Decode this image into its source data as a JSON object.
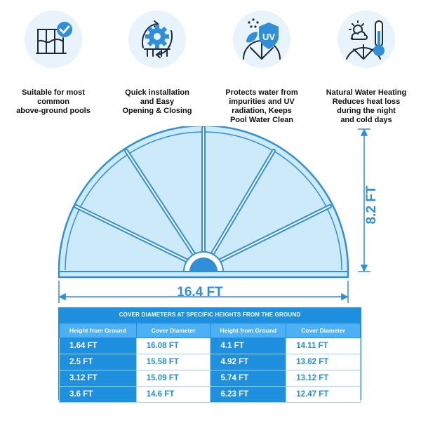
{
  "features": [
    {
      "icon": "pool-check-icon",
      "caption": "Suitable for most\ncommon\nabove-ground pools"
    },
    {
      "icon": "gear-refresh-icon",
      "caption": "Quick installation\nand Easy\nOpening & Closing"
    },
    {
      "icon": "uv-shield-icon",
      "caption": "Protects water from\nimpurities and UV\nradiation, Keeps\nPool Water Clean"
    },
    {
      "icon": "sun-thermometer-icon",
      "caption": "Natural Water Heating\nReduces heat loss\nduring the night\nand cold days"
    }
  ],
  "dimensions": {
    "height": "8.2 FT",
    "width": "16.4 FT"
  },
  "table": {
    "title": "COVER DIAMETERS AT SPECIFIC HEIGHTS FROM THE GROUND",
    "headers": [
      "Height from Ground",
      "Cover Diameter",
      "Height from Ground",
      "Cover Diameter"
    ],
    "rows": [
      [
        "1.64 FT",
        "16.08 FT",
        "4.1 FT",
        "14.11 FT"
      ],
      [
        "2.5 FT",
        "15.58 FT",
        "4.92 FT",
        "13.62 FT"
      ],
      [
        "3.12 FT",
        "15.09 FT",
        "5.74 FT",
        "13.12 FT"
      ],
      [
        "3.6 FT",
        "14.6 FT",
        "6.23 FT",
        "12.47 FT"
      ]
    ]
  },
  "colors": {
    "accent": "#2f8fd8",
    "table_blue": "#1f8fe0",
    "header_blue": "#4db0f4",
    "cover_fill": "#cdeafb"
  }
}
